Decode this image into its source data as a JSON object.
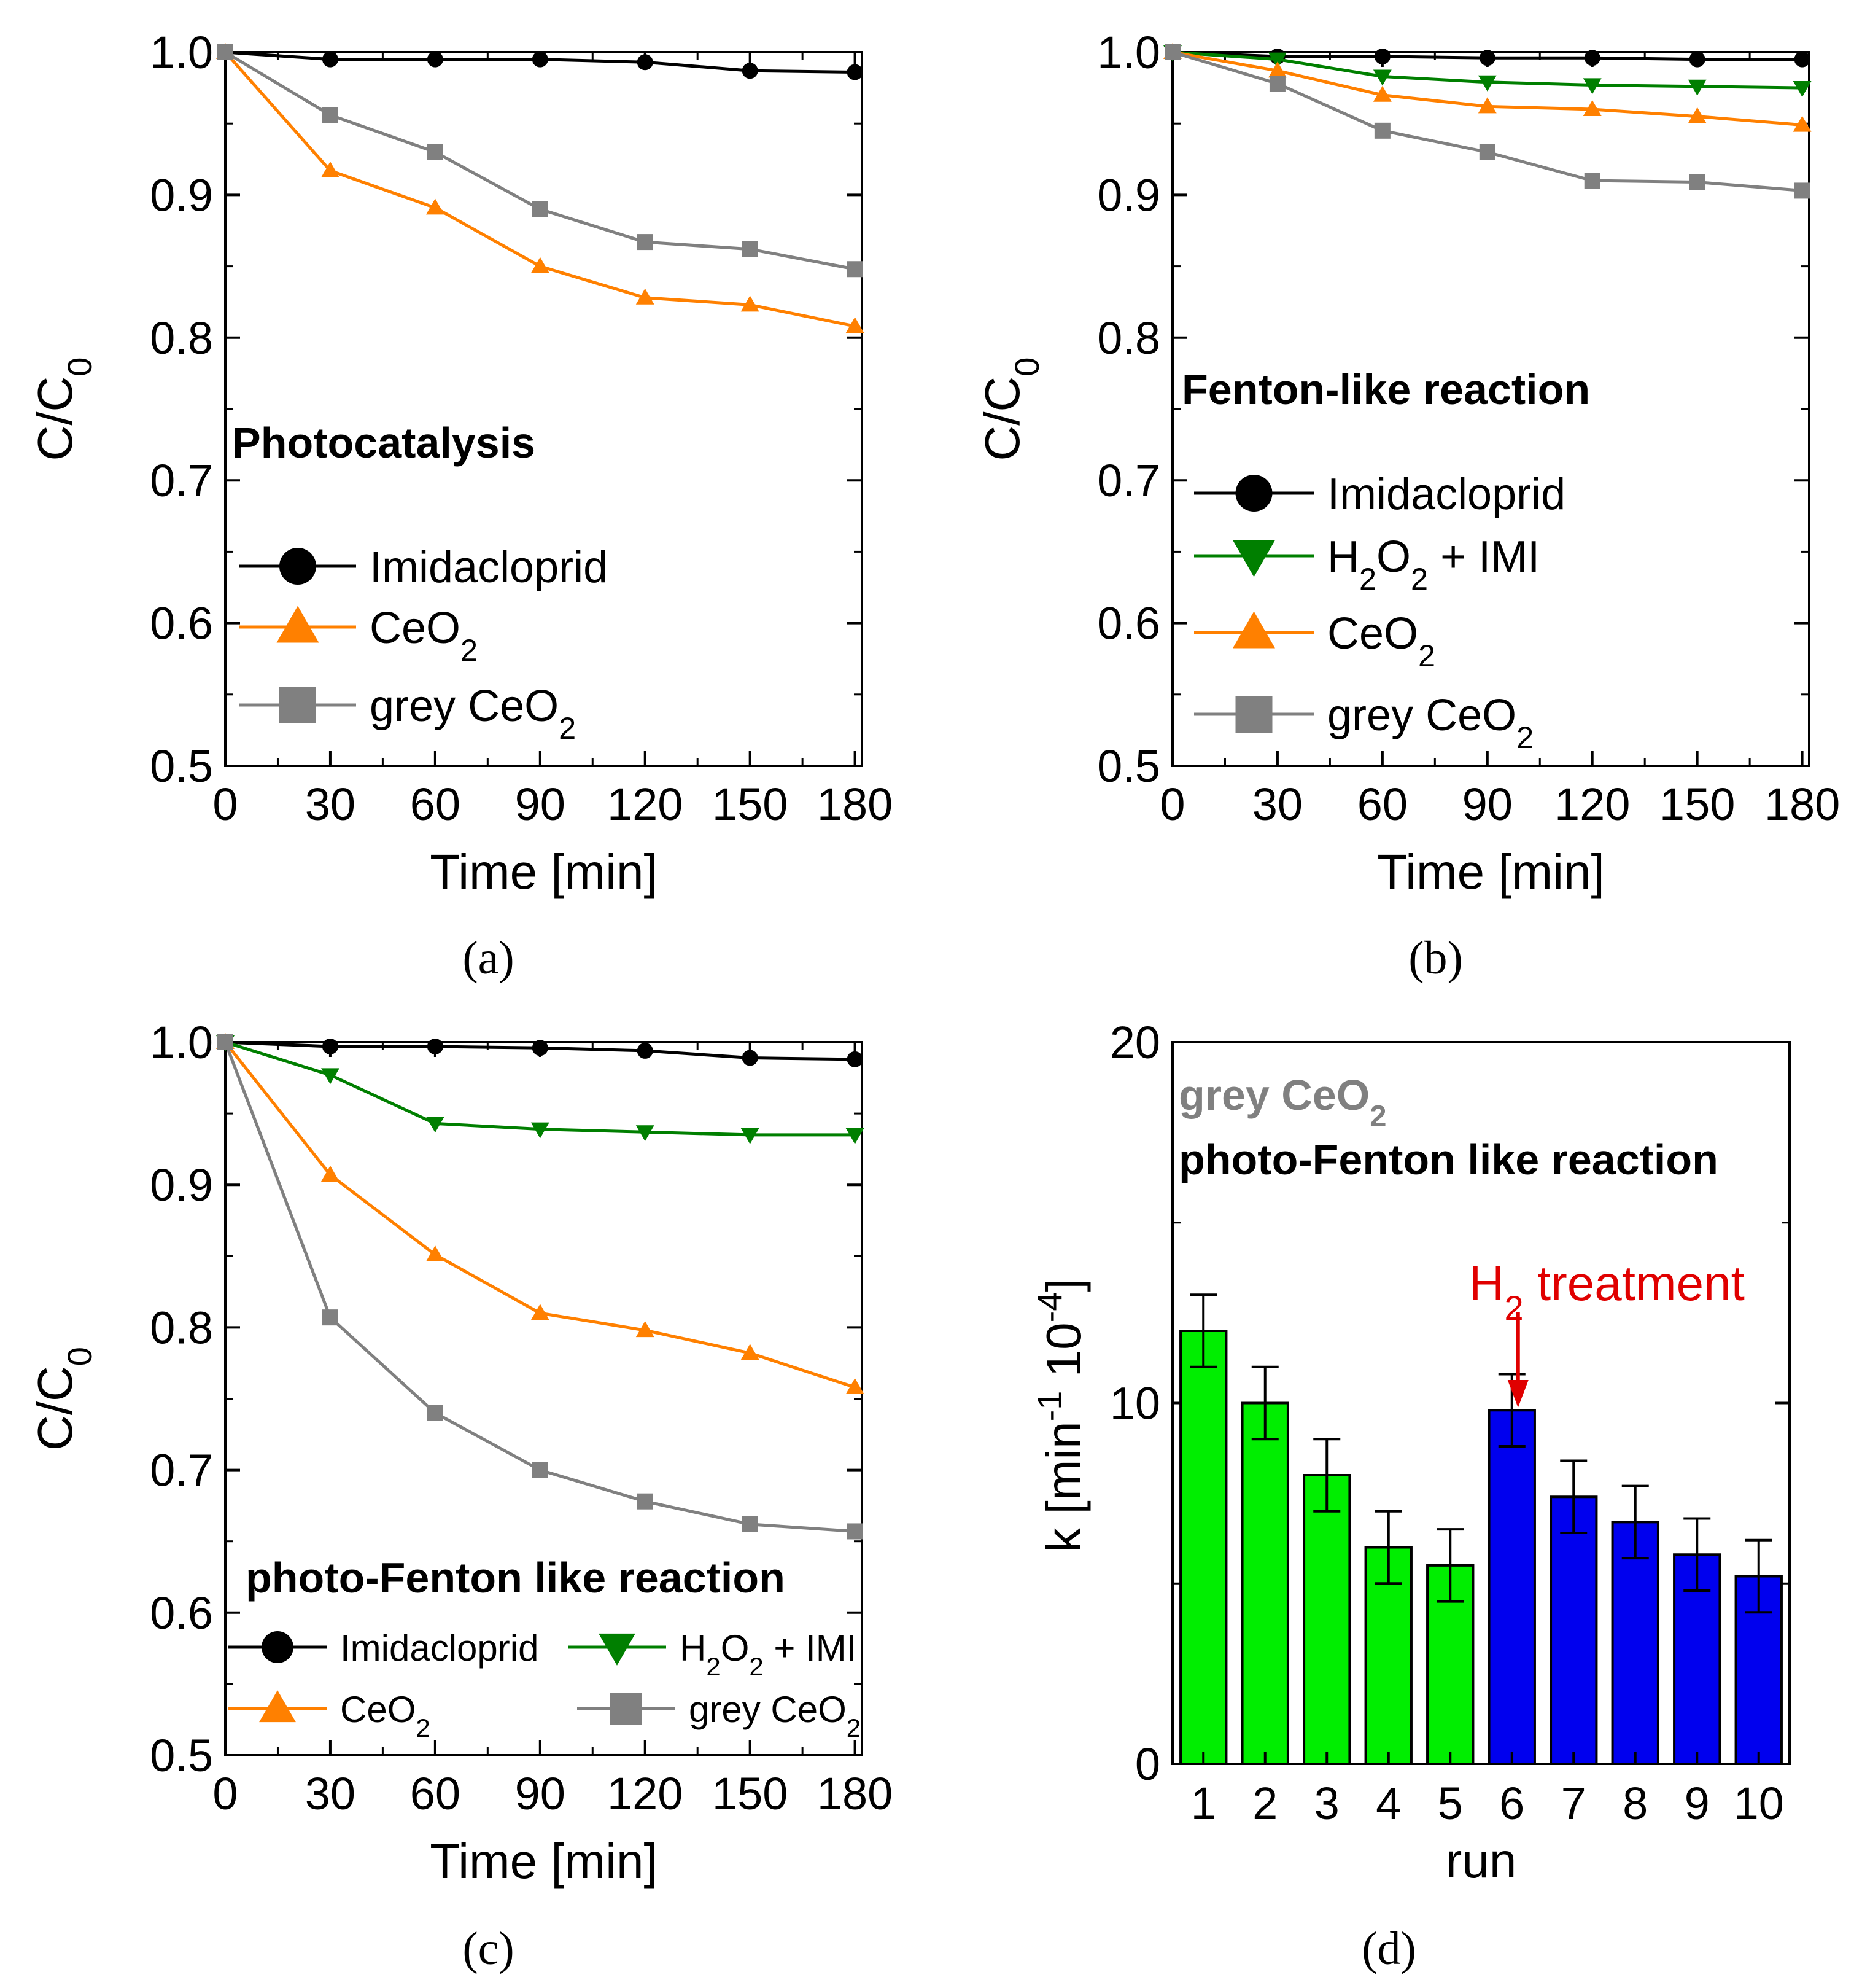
{
  "colors": {
    "imidacloprid": "#000000",
    "ceo2": "#ff8000",
    "grey_ceo2": "#808080",
    "h2o2": "#007f00",
    "bar_before": "#00ee00",
    "bar_after": "#0000ee",
    "annotation": "#e00000"
  },
  "chart_data": [
    {
      "type": "line",
      "panel": "(a)",
      "title": "Photocatalysis",
      "xlabel": "Time [min]",
      "ylabel": "C/C",
      "ylabel_sub": "0",
      "xlim": [
        0,
        182
      ],
      "ylim": [
        0.5,
        1.0
      ],
      "xticks": [
        "0",
        "30",
        "60",
        "90",
        "120",
        "150",
        "180"
      ],
      "yticks": [
        "0.5",
        "0.6",
        "0.7",
        "0.8",
        "0.9",
        "1.0"
      ],
      "x": [
        0,
        30,
        60,
        90,
        120,
        150,
        180
      ],
      "series": [
        {
          "key": "imi",
          "name": "Imidacloprid",
          "sub": "",
          "marker": "circle",
          "values": [
            1.0,
            0.995,
            0.995,
            0.995,
            0.993,
            0.987,
            0.986
          ]
        },
        {
          "key": "ceo2",
          "name": "CeO",
          "sub": "2",
          "marker": "triangle-up",
          "values": [
            1.0,
            0.917,
            0.891,
            0.85,
            0.828,
            0.823,
            0.808
          ]
        },
        {
          "key": "grey",
          "name": "grey CeO",
          "sub": "2",
          "marker": "square",
          "values": [
            1.0,
            0.956,
            0.93,
            0.89,
            0.867,
            0.862,
            0.848
          ]
        }
      ]
    },
    {
      "type": "line",
      "panel": "(b)",
      "title": "Fenton-like reaction",
      "xlabel": "Time [min]",
      "ylabel": "C/C",
      "ylabel_sub": "0",
      "xlim": [
        0,
        182
      ],
      "ylim": [
        0.5,
        1.0
      ],
      "xticks": [
        "0",
        "30",
        "60",
        "90",
        "120",
        "150",
        "180"
      ],
      "yticks": [
        "0.5",
        "0.6",
        "0.7",
        "0.8",
        "0.9",
        "1.0"
      ],
      "x": [
        0,
        30,
        60,
        90,
        120,
        150,
        180
      ],
      "series": [
        {
          "key": "imi",
          "name": "Imidacloprid",
          "sub": "",
          "marker": "circle",
          "values": [
            1.0,
            0.997,
            0.997,
            0.996,
            0.996,
            0.995,
            0.995
          ]
        },
        {
          "key": "h2o2",
          "name": "H2O2 + IMI",
          "sub": "",
          "marker": "triangle-down",
          "values": [
            1.0,
            0.995,
            0.983,
            0.979,
            0.977,
            0.976,
            0.975
          ]
        },
        {
          "key": "ceo2",
          "name": "CeO",
          "sub": "2",
          "marker": "triangle-up",
          "values": [
            1.0,
            0.987,
            0.97,
            0.962,
            0.96,
            0.955,
            0.949
          ]
        },
        {
          "key": "grey",
          "name": "grey CeO",
          "sub": "2",
          "marker": "square",
          "values": [
            1.0,
            0.978,
            0.945,
            0.93,
            0.91,
            0.909,
            0.903
          ]
        }
      ]
    },
    {
      "type": "line",
      "panel": "(c)",
      "title": "photo-Fenton like reaction",
      "xlabel": "Time [min]",
      "ylabel": "C/C",
      "ylabel_sub": "0",
      "xlim": [
        0,
        182
      ],
      "ylim": [
        0.5,
        1.0
      ],
      "xticks": [
        "0",
        "30",
        "60",
        "90",
        "120",
        "150",
        "180"
      ],
      "yticks": [
        "0.5",
        "0.6",
        "0.7",
        "0.8",
        "0.9",
        "1.0"
      ],
      "x": [
        0,
        30,
        60,
        90,
        120,
        150,
        180
      ],
      "series": [
        {
          "key": "imi",
          "name": "Imidacloprid",
          "sub": "",
          "marker": "circle",
          "values": [
            1.0,
            0.997,
            0.997,
            0.996,
            0.994,
            0.989,
            0.988
          ]
        },
        {
          "key": "h2o2",
          "name": "H2O2 + IMI",
          "sub": "",
          "marker": "triangle-down",
          "values": [
            1.0,
            0.977,
            0.943,
            0.939,
            0.937,
            0.935,
            0.935
          ]
        },
        {
          "key": "ceo2",
          "name": "CeO",
          "sub": "2",
          "marker": "triangle-up",
          "values": [
            1.0,
            0.907,
            0.851,
            0.81,
            0.798,
            0.782,
            0.758
          ]
        },
        {
          "key": "grey",
          "name": "grey CeO",
          "sub": "2",
          "marker": "square",
          "values": [
            1.0,
            0.807,
            0.74,
            0.7,
            0.678,
            0.662,
            0.657
          ]
        }
      ]
    },
    {
      "type": "bar",
      "panel": "(d)",
      "title": "photo-Fenton like reaction",
      "subtitle": "grey CeO",
      "subtitle_sub": "2",
      "xlabel": "run",
      "ylabel": "k [min",
      "ylim": [
        0,
        20
      ],
      "yticks": [
        "0",
        "10",
        "20"
      ],
      "categories": [
        "1",
        "2",
        "3",
        "4",
        "5",
        "6",
        "7",
        "8",
        "9",
        "10"
      ],
      "values": [
        12.0,
        10.0,
        8.0,
        6.0,
        5.5,
        9.8,
        7.4,
        6.7,
        5.8,
        5.2
      ],
      "errors": [
        1.0,
        1.0,
        1.0,
        1.0,
        1.0,
        1.0,
        1.0,
        1.0,
        1.0,
        1.0
      ],
      "annotation": "H",
      "annotation_sub": "2",
      "annotation_tail": "treatment"
    }
  ]
}
